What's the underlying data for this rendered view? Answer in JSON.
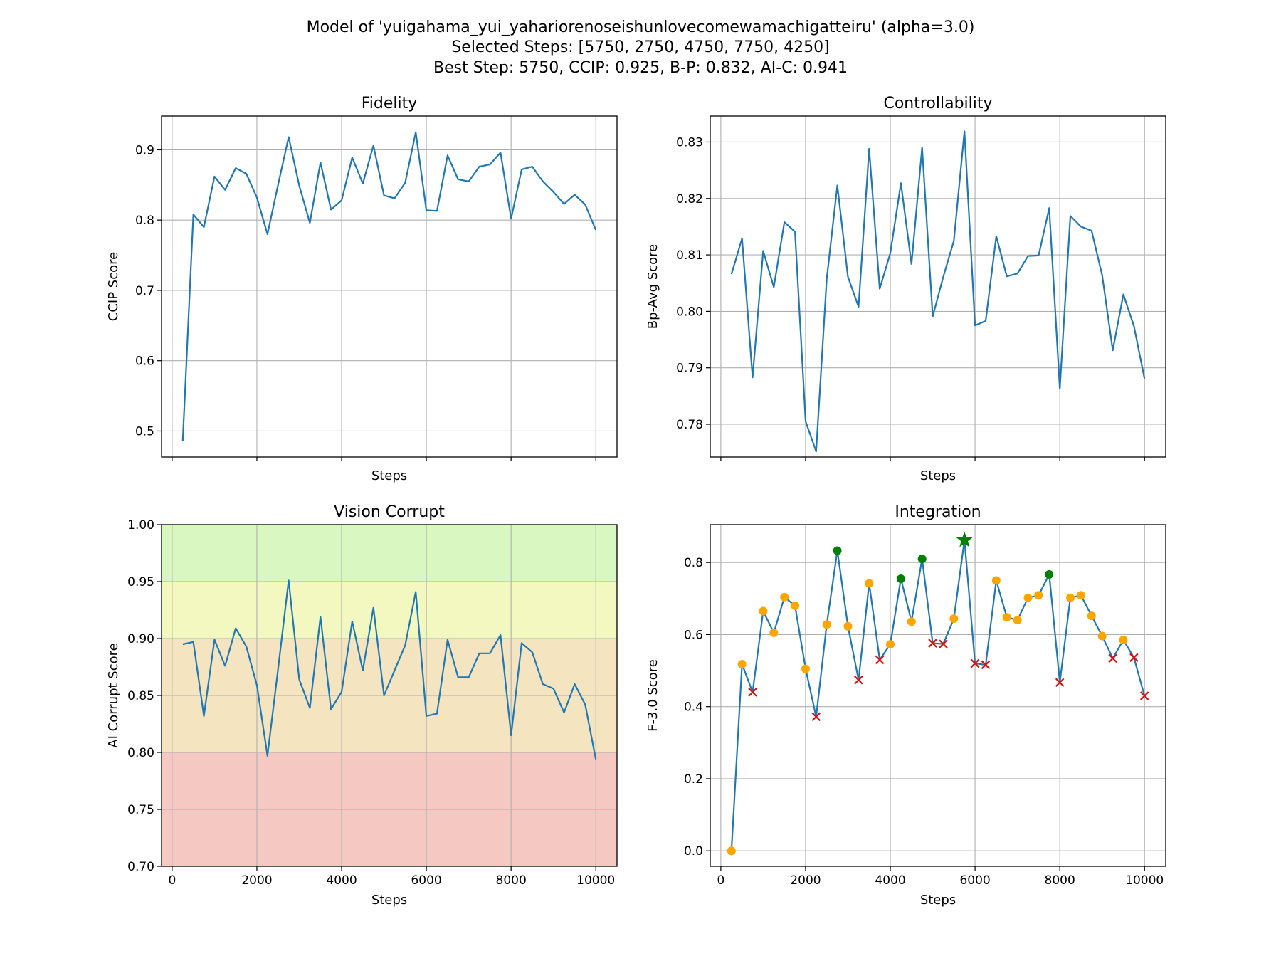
{
  "figure": {
    "title_lines": [
      "Model of 'yuigahama_yui_yahariorenoseishunlovecomewamachigatteiru' (alpha=3.0)",
      "Selected Steps: [5750, 2750, 4750, 7750, 4250]",
      "Best Step: 5750, CCIP: 0.925, B-P: 0.832, AI-C: 0.941"
    ],
    "colors": {
      "line": "#1f77b4",
      "grid": "#b0b0b0",
      "zone_green": "#d9f7c0",
      "zone_yellow": "#f3f7c0",
      "zone_orange": "#f5e4c0",
      "zone_red": "#f5c8c2",
      "marker_orange": "#ffa500",
      "marker_green": "#008000",
      "marker_red": "#e01010"
    }
  },
  "chart_data": [
    {
      "id": "fidelity",
      "type": "line",
      "title": "Fidelity",
      "xlabel": "Steps",
      "ylabel": "CCIP Score",
      "xlim": [
        -250,
        10500
      ],
      "ylim": [
        0.463,
        0.948
      ],
      "xticks": [
        0,
        2000,
        4000,
        6000,
        8000,
        10000
      ],
      "show_xtick_labels": false,
      "yticks": [
        0.5,
        0.6,
        0.7,
        0.8,
        0.9
      ],
      "ytick_labels": [
        "0.5",
        "0.6",
        "0.7",
        "0.8",
        "0.9"
      ],
      "x": [
        250,
        500,
        750,
        1000,
        1250,
        1500,
        1750,
        2000,
        2250,
        2500,
        2750,
        3000,
        3250,
        3500,
        3750,
        4000,
        4250,
        4500,
        4750,
        5000,
        5250,
        5500,
        5750,
        6000,
        6250,
        6500,
        6750,
        7000,
        7250,
        7500,
        7750,
        8000,
        8250,
        8500,
        8750,
        9000,
        9250,
        9500,
        9750,
        10000
      ],
      "values": [
        0.486,
        0.808,
        0.79,
        0.862,
        0.843,
        0.874,
        0.866,
        0.832,
        0.78,
        0.85,
        0.918,
        0.849,
        0.796,
        0.882,
        0.815,
        0.828,
        0.889,
        0.852,
        0.906,
        0.835,
        0.831,
        0.853,
        0.925,
        0.814,
        0.813,
        0.892,
        0.858,
        0.855,
        0.876,
        0.879,
        0.896,
        0.802,
        0.872,
        0.876,
        0.855,
        0.84,
        0.823,
        0.836,
        0.822,
        0.786
      ]
    },
    {
      "id": "controllability",
      "type": "line",
      "title": "Controllability",
      "xlabel": "Steps",
      "ylabel": "Bp-Avg Score",
      "xlim": [
        -250,
        10500
      ],
      "ylim": [
        0.7742,
        0.8346
      ],
      "xticks": [
        0,
        2000,
        4000,
        6000,
        8000,
        10000
      ],
      "show_xtick_labels": false,
      "yticks": [
        0.78,
        0.79,
        0.8,
        0.81,
        0.82,
        0.83
      ],
      "ytick_labels": [
        "0.78",
        "0.79",
        "0.80",
        "0.81",
        "0.82",
        "0.83"
      ],
      "x": [
        250,
        500,
        750,
        1000,
        1250,
        1500,
        1750,
        2000,
        2250,
        2500,
        2750,
        3000,
        3250,
        3500,
        3750,
        4000,
        4250,
        4500,
        4750,
        5000,
        5250,
        5500,
        5750,
        6000,
        6250,
        6500,
        6750,
        7000,
        7250,
        7500,
        7750,
        8000,
        8250,
        8500,
        8750,
        9000,
        9250,
        9500,
        9750,
        10000
      ],
      "values": [
        0.8066,
        0.8129,
        0.7883,
        0.8107,
        0.8043,
        0.8158,
        0.8141,
        0.7805,
        0.7752,
        0.8058,
        0.8223,
        0.8061,
        0.8008,
        0.8288,
        0.804,
        0.8103,
        0.8227,
        0.8084,
        0.829,
        0.7991,
        0.8061,
        0.8125,
        0.8319,
        0.7975,
        0.7983,
        0.8133,
        0.8062,
        0.8067,
        0.8098,
        0.8099,
        0.8183,
        0.7863,
        0.8169,
        0.815,
        0.8143,
        0.8064,
        0.7931,
        0.803,
        0.7974,
        0.7881
      ]
    },
    {
      "id": "vision-corrupt",
      "type": "line",
      "title": "Vision Corrupt",
      "xlabel": "Steps",
      "ylabel": "AI Corrupt Score",
      "xlim": [
        -250,
        10500
      ],
      "ylim": [
        0.7,
        1.0
      ],
      "xticks": [
        0,
        2000,
        4000,
        6000,
        8000,
        10000
      ],
      "xtick_labels": [
        "0",
        "2000",
        "4000",
        "6000",
        "8000",
        "10000"
      ],
      "show_xtick_labels": true,
      "yticks": [
        0.7,
        0.75,
        0.8,
        0.85,
        0.9,
        0.95,
        1.0
      ],
      "ytick_labels": [
        "0.70",
        "0.75",
        "0.80",
        "0.85",
        "0.90",
        "0.95",
        "1.00"
      ],
      "zones": [
        {
          "from": 0.95,
          "to": 1.0,
          "color": "#d9f7c0"
        },
        {
          "from": 0.9,
          "to": 0.95,
          "color": "#f3f7c0"
        },
        {
          "from": 0.8,
          "to": 0.9,
          "color": "#f5e4c0"
        },
        {
          "from": 0.7,
          "to": 0.8,
          "color": "#f5c8c2"
        }
      ],
      "x": [
        250,
        500,
        750,
        1000,
        1250,
        1500,
        1750,
        2000,
        2250,
        2500,
        2750,
        3000,
        3250,
        3500,
        3750,
        4000,
        4250,
        4500,
        4750,
        5000,
        5250,
        5500,
        5750,
        6000,
        6250,
        6500,
        6750,
        7000,
        7250,
        7500,
        7750,
        8000,
        8250,
        8500,
        8750,
        9000,
        9250,
        9500,
        9750,
        10000
      ],
      "values": [
        0.895,
        0.897,
        0.832,
        0.899,
        0.876,
        0.909,
        0.893,
        0.859,
        0.797,
        0.873,
        0.951,
        0.864,
        0.839,
        0.919,
        0.838,
        0.853,
        0.915,
        0.872,
        0.927,
        0.85,
        0.872,
        0.894,
        0.941,
        0.832,
        0.834,
        0.899,
        0.866,
        0.866,
        0.887,
        0.887,
        0.903,
        0.815,
        0.896,
        0.888,
        0.86,
        0.856,
        0.835,
        0.86,
        0.842,
        0.794
      ]
    },
    {
      "id": "integration",
      "type": "line",
      "title": "Integration",
      "xlabel": "Steps",
      "ylabel": "F-3.0 Score",
      "xlim": [
        -250,
        10500
      ],
      "ylim": [
        -0.043,
        0.905
      ],
      "xticks": [
        0,
        2000,
        4000,
        6000,
        8000,
        10000
      ],
      "xtick_labels": [
        "0",
        "2000",
        "4000",
        "6000",
        "8000",
        "10000"
      ],
      "show_xtick_labels": true,
      "yticks": [
        0.0,
        0.2,
        0.4,
        0.6,
        0.8
      ],
      "ytick_labels": [
        "0.0",
        "0.2",
        "0.4",
        "0.6",
        "0.8"
      ],
      "x": [
        250,
        500,
        750,
        1000,
        1250,
        1500,
        1750,
        2000,
        2250,
        2500,
        2750,
        3000,
        3250,
        3500,
        3750,
        4000,
        4250,
        4500,
        4750,
        5000,
        5250,
        5500,
        5750,
        6000,
        6250,
        6500,
        6750,
        7000,
        7250,
        7500,
        7750,
        8000,
        8250,
        8500,
        8750,
        9000,
        9250,
        9500,
        9750,
        10000
      ],
      "values": [
        0.0,
        0.518,
        0.44,
        0.665,
        0.605,
        0.704,
        0.68,
        0.505,
        0.372,
        0.628,
        0.833,
        0.623,
        0.474,
        0.742,
        0.53,
        0.573,
        0.755,
        0.636,
        0.81,
        0.576,
        0.574,
        0.644,
        0.862,
        0.52,
        0.516,
        0.75,
        0.648,
        0.64,
        0.702,
        0.709,
        0.767,
        0.467,
        0.702,
        0.709,
        0.652,
        0.596,
        0.534,
        0.585,
        0.536,
        0.43
      ],
      "markers": [
        "o",
        "o",
        "x",
        "o",
        "o",
        "o",
        "o",
        "o",
        "x",
        "o",
        "g",
        "o",
        "x",
        "o",
        "x",
        "o",
        "g",
        "o",
        "g",
        "x",
        "x",
        "o",
        "star",
        "x",
        "x",
        "o",
        "o",
        "o",
        "o",
        "o",
        "g",
        "x",
        "o",
        "o",
        "o",
        "o",
        "x",
        "o",
        "x",
        "x"
      ]
    }
  ]
}
